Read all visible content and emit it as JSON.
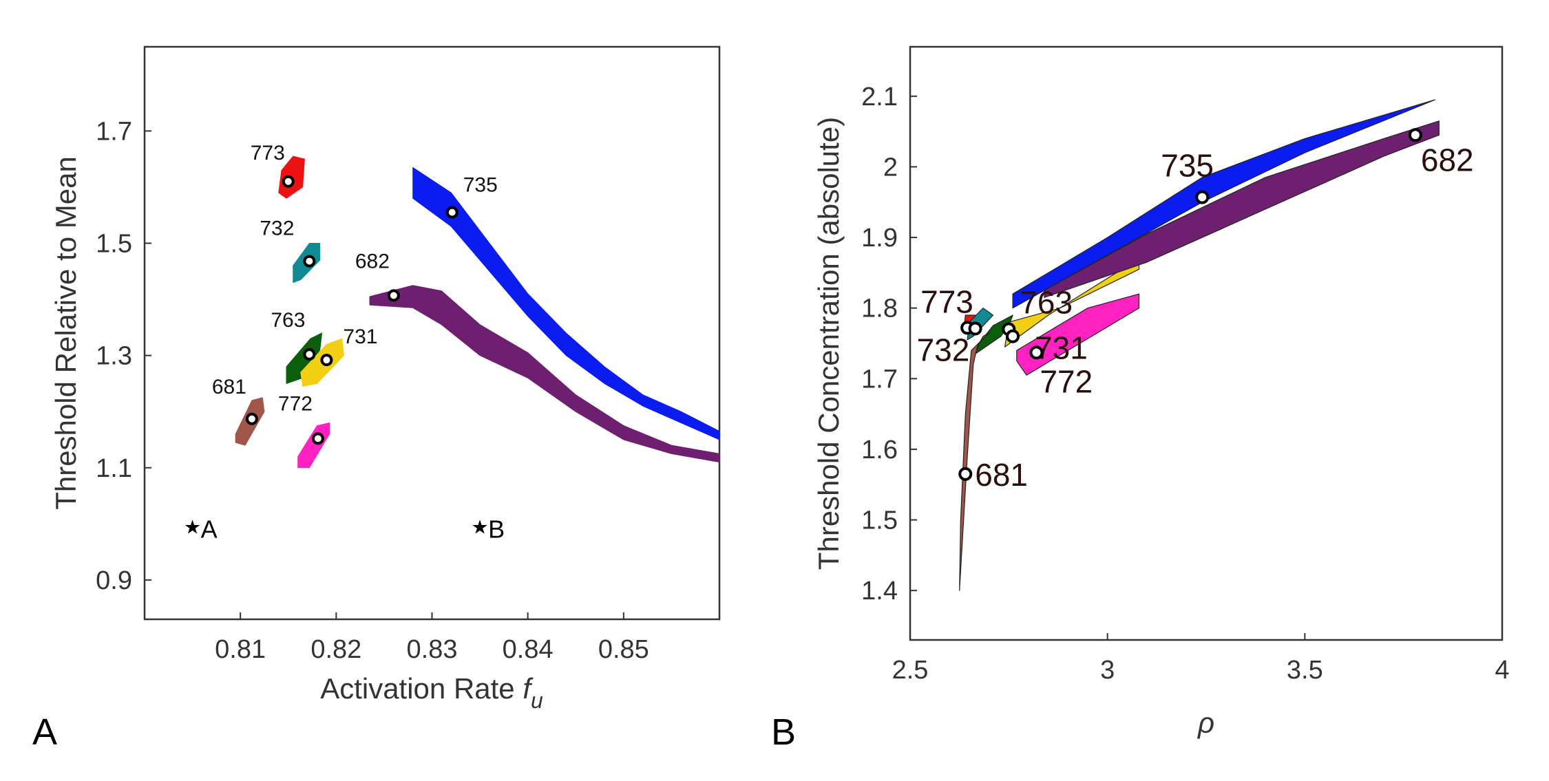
{
  "chart_data": [
    {
      "type": "scatter",
      "panel_label": "A",
      "xlabel": "Activation Rate",
      "xlabel_sym": "f",
      "xlabel_sub": "u",
      "ylabel": "Threshold Relative to Mean",
      "xlim": [
        0.8,
        0.86
      ],
      "ylim": [
        0.83,
        1.85
      ],
      "xticks": [
        0.81,
        0.82,
        0.83,
        0.84,
        0.85
      ],
      "xtick_labels": [
        "0.81",
        "0.82",
        "0.83",
        "0.84",
        "0.85"
      ],
      "yticks": [
        0.9,
        1.1,
        1.3,
        1.5,
        1.7
      ],
      "ytick_labels": [
        "0.9",
        "1.1",
        "1.3",
        "1.5",
        "1.7"
      ],
      "grid": false,
      "reference_points": [
        {
          "label": "A",
          "x": 0.805,
          "y": 0.995
        },
        {
          "label": "B",
          "x": 0.835,
          "y": 0.995
        }
      ],
      "series": [
        {
          "name": "773",
          "color": "#ee1111",
          "marker": {
            "x": 0.815,
            "y": 1.61
          },
          "region": [
            [
              0.814,
              1.59
            ],
            [
              0.8148,
              1.58
            ],
            [
              0.8165,
              1.6
            ],
            [
              0.8167,
              1.65
            ],
            [
              0.8155,
              1.655
            ],
            [
              0.8143,
              1.63
            ]
          ]
        },
        {
          "name": "732",
          "color": "#118a93",
          "marker": {
            "x": 0.8172,
            "y": 1.468
          },
          "region": [
            [
              0.8155,
              1.43
            ],
            [
              0.8163,
              1.435
            ],
            [
              0.8183,
              1.47
            ],
            [
              0.8183,
              1.5
            ],
            [
              0.8172,
              1.5
            ],
            [
              0.8155,
              1.46
            ]
          ]
        },
        {
          "name": "763",
          "color": "#0b5e0b",
          "marker": {
            "x": 0.8172,
            "y": 1.302
          },
          "region": [
            [
              0.8148,
              1.25
            ],
            [
              0.8165,
              1.26
            ],
            [
              0.8183,
              1.31
            ],
            [
              0.8185,
              1.34
            ],
            [
              0.8173,
              1.33
            ],
            [
              0.8148,
              1.28
            ]
          ]
        },
        {
          "name": "731",
          "color": "#f3cf14",
          "marker": {
            "x": 0.819,
            "y": 1.292
          },
          "region": [
            [
              0.8165,
              1.245
            ],
            [
              0.818,
              1.25
            ],
            [
              0.8208,
              1.3
            ],
            [
              0.8206,
              1.33
            ],
            [
              0.819,
              1.32
            ],
            [
              0.8163,
              1.27
            ]
          ]
        },
        {
          "name": "681",
          "color": "#a0574a",
          "marker": {
            "x": 0.8112,
            "y": 1.187
          },
          "region": [
            [
              0.8095,
              1.145
            ],
            [
              0.8105,
              1.14
            ],
            [
              0.8125,
              1.2
            ],
            [
              0.8123,
              1.225
            ],
            [
              0.8112,
              1.22
            ],
            [
              0.8095,
              1.16
            ]
          ]
        },
        {
          "name": "772",
          "color": "#ff22c0",
          "marker": {
            "x": 0.8181,
            "y": 1.152
          },
          "region": [
            [
              0.816,
              1.1
            ],
            [
              0.8172,
              1.1
            ],
            [
              0.8193,
              1.16
            ],
            [
              0.8193,
              1.18
            ],
            [
              0.818,
              1.175
            ],
            [
              0.816,
              1.12
            ]
          ]
        },
        {
          "name": "735",
          "color": "#0a1cf0",
          "marker": {
            "x": 0.8321,
            "y": 1.555
          },
          "lower": [
            [
              0.828,
              1.58
            ],
            [
              0.832,
              1.53
            ],
            [
              0.836,
              1.45
            ],
            [
              0.84,
              1.37
            ],
            [
              0.844,
              1.3
            ],
            [
              0.848,
              1.25
            ],
            [
              0.852,
              1.21
            ],
            [
              0.856,
              1.18
            ],
            [
              0.86,
              1.15
            ]
          ],
          "upper": [
            [
              0.828,
              1.635
            ],
            [
              0.832,
              1.59
            ],
            [
              0.836,
              1.5
            ],
            [
              0.84,
              1.41
            ],
            [
              0.844,
              1.34
            ],
            [
              0.848,
              1.28
            ],
            [
              0.852,
              1.23
            ],
            [
              0.856,
              1.2
            ],
            [
              0.86,
              1.165
            ]
          ]
        },
        {
          "name": "682",
          "color": "#6e1f70",
          "marker": {
            "x": 0.826,
            "y": 1.407
          },
          "lower": [
            [
              0.8235,
              1.39
            ],
            [
              0.828,
              1.385
            ],
            [
              0.831,
              1.355
            ],
            [
              0.835,
              1.3
            ],
            [
              0.84,
              1.26
            ],
            [
              0.845,
              1.2
            ],
            [
              0.85,
              1.15
            ],
            [
              0.855,
              1.125
            ],
            [
              0.86,
              1.11
            ]
          ],
          "upper": [
            [
              0.8235,
              1.405
            ],
            [
              0.828,
              1.425
            ],
            [
              0.831,
              1.415
            ],
            [
              0.835,
              1.355
            ],
            [
              0.84,
              1.305
            ],
            [
              0.845,
              1.23
            ],
            [
              0.85,
              1.175
            ],
            [
              0.855,
              1.14
            ],
            [
              0.86,
              1.125
            ]
          ]
        }
      ]
    },
    {
      "type": "scatter",
      "panel_label": "B",
      "xlabel": "ρ",
      "ylabel": "Threshold Concentration (absolute)",
      "xlim": [
        2.5,
        4.0
      ],
      "ylim": [
        1.33,
        2.17
      ],
      "xticks": [
        2.5,
        3.0,
        3.5,
        4.0
      ],
      "xtick_labels": [
        "2.5",
        "3",
        "3.5",
        "4"
      ],
      "yticks": [
        1.4,
        1.5,
        1.6,
        1.7,
        1.8,
        1.9,
        2.0,
        2.1
      ],
      "ytick_labels": [
        "1.4",
        "1.5",
        "1.6",
        "1.7",
        "1.8",
        "1.9",
        "2",
        "2.1"
      ],
      "grid": false,
      "series": [
        {
          "name": "773",
          "color": "#ee1111",
          "marker": {
            "x": 2.645,
            "y": 1.772
          },
          "region": [
            [
              2.635,
              1.765
            ],
            [
              2.66,
              1.765
            ],
            [
              2.665,
              1.79
            ],
            [
              2.64,
              1.79
            ]
          ]
        },
        {
          "name": "732",
          "color": "#118a93",
          "marker": {
            "x": 2.665,
            "y": 1.771
          },
          "region": [
            [
              2.645,
              1.755
            ],
            [
              2.66,
              1.76
            ],
            [
              2.71,
              1.79
            ],
            [
              2.685,
              1.8
            ],
            [
              2.65,
              1.78
            ]
          ]
        },
        {
          "name": "763",
          "color": "#0b5e0b",
          "marker": {
            "x": 2.75,
            "y": 1.77
          },
          "region": [
            [
              2.665,
              1.735
            ],
            [
              2.73,
              1.76
            ],
            [
              2.75,
              1.775
            ],
            [
              2.76,
              1.79
            ],
            [
              2.71,
              1.775
            ],
            [
              2.675,
              1.75
            ]
          ]
        },
        {
          "name": "731",
          "color": "#f3cf14",
          "marker": {
            "x": 2.76,
            "y": 1.76
          },
          "region": [
            [
              2.74,
              1.745
            ],
            [
              2.85,
              1.79
            ],
            [
              3.08,
              1.87
            ],
            [
              3.08,
              1.855
            ],
            [
              2.88,
              1.8
            ],
            [
              2.75,
              1.78
            ]
          ]
        },
        {
          "name": "772",
          "color": "#ff22c0",
          "marker": {
            "x": 2.82,
            "y": 1.737
          },
          "region": [
            [
              2.77,
              1.725
            ],
            [
              2.795,
              1.705
            ],
            [
              3.08,
              1.8
            ],
            [
              3.08,
              1.82
            ],
            [
              2.95,
              1.8
            ],
            [
              2.77,
              1.74
            ]
          ]
        },
        {
          "name": "681",
          "color": "#a0574a",
          "marker": {
            "x": 2.64,
            "y": 1.565
          },
          "region": [
            [
              2.625,
              1.4
            ],
            [
              2.645,
              1.59
            ],
            [
              2.66,
              1.72
            ],
            [
              2.67,
              1.745
            ],
            [
              2.685,
              1.76
            ],
            [
              2.7,
              1.765
            ],
            [
              2.655,
              1.74
            ],
            [
              2.64,
              1.65
            ],
            [
              2.628,
              1.5
            ]
          ]
        },
        {
          "name": "735",
          "color": "#0a1cf0",
          "marker": {
            "x": 3.24,
            "y": 1.957
          },
          "lower": [
            [
              2.76,
              1.8
            ],
            [
              3.0,
              1.875
            ],
            [
              3.24,
              1.95
            ],
            [
              3.5,
              2.02
            ],
            [
              3.83,
              2.095
            ]
          ],
          "upper": [
            [
              2.76,
              1.82
            ],
            [
              3.0,
              1.9
            ],
            [
              3.24,
              1.985
            ],
            [
              3.5,
              2.04
            ],
            [
              3.83,
              2.095
            ]
          ]
        },
        {
          "name": "682",
          "color": "#6e1f70",
          "marker": {
            "x": 3.78,
            "y": 2.045
          },
          "lower": [
            [
              2.84,
              1.815
            ],
            [
              3.1,
              1.865
            ],
            [
              3.4,
              1.94
            ],
            [
              3.7,
              2.015
            ],
            [
              3.84,
              2.045
            ]
          ],
          "upper": [
            [
              2.84,
              1.825
            ],
            [
              3.1,
              1.905
            ],
            [
              3.4,
              1.985
            ],
            [
              3.7,
              2.04
            ],
            [
              3.84,
              2.065
            ]
          ]
        }
      ]
    }
  ]
}
